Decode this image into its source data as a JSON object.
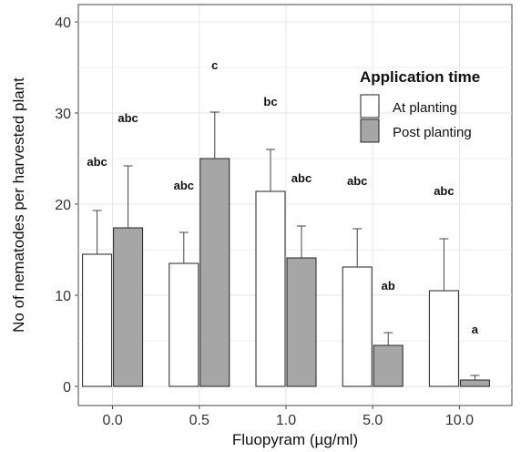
{
  "chart_data": {
    "type": "bar",
    "xlabel": "Fluopyram (µg/ml)",
    "ylabel": "No of nematodes per harvested plant",
    "ylim": [
      0,
      40
    ],
    "yticks": [
      0,
      10,
      20,
      30,
      40
    ],
    "categories": [
      "0.0",
      "0.5",
      "1.0",
      "5.0",
      "10.0"
    ],
    "grid": true,
    "legend": {
      "title": "Application time",
      "position": "top-right"
    },
    "series": [
      {
        "name": "At planting",
        "color": "#ffffff",
        "values": [
          14.5,
          13.5,
          21.4,
          13.1,
          10.5
        ],
        "error_upper": [
          19.3,
          16.9,
          26.0,
          17.3,
          16.2
        ],
        "significance": [
          "abc",
          "abc",
          "bc",
          "abc",
          "abc"
        ],
        "significance_y": [
          24.2,
          21.6,
          30.8,
          22.1,
          21.0
        ]
      },
      {
        "name": "Post planting",
        "color": "#a6a6a6",
        "values": [
          17.4,
          25.0,
          14.1,
          4.5,
          0.7
        ],
        "error_upper": [
          24.2,
          30.1,
          17.6,
          5.9,
          1.2
        ],
        "significance": [
          "abc",
          "c",
          "abc",
          "ab",
          "a"
        ],
        "significance_y": [
          29.0,
          34.8,
          22.4,
          10.6,
          5.8
        ]
      }
    ]
  }
}
